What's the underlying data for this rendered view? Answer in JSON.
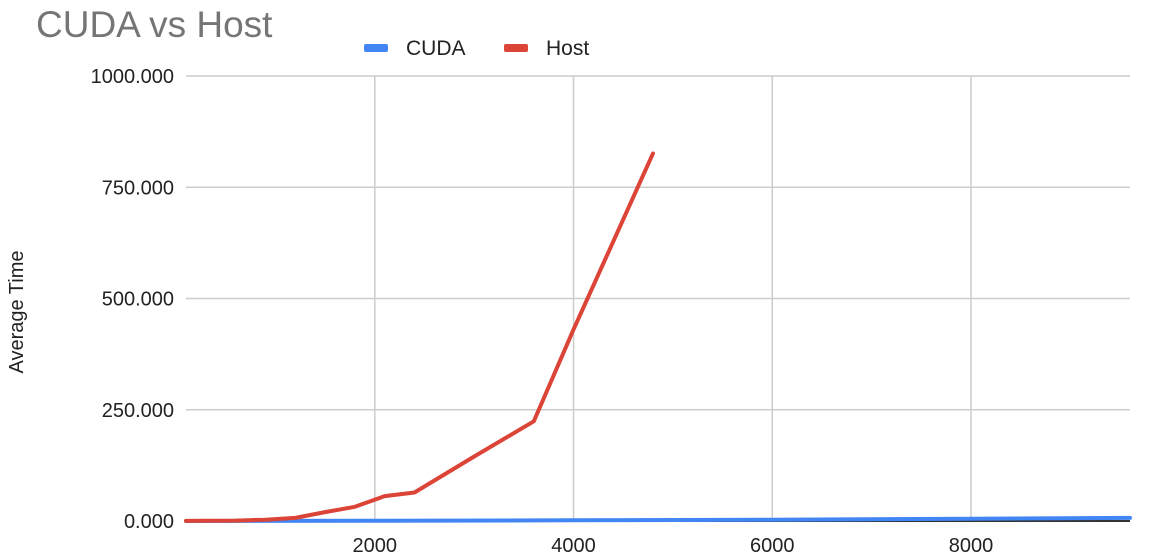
{
  "chart_data": {
    "type": "line",
    "title": "CUDA vs Host",
    "xlabel": "",
    "ylabel": "Average Time",
    "xlim": [
      100,
      9600
    ],
    "ylim": [
      0,
      1000
    ],
    "x_ticks": [
      2000,
      4000,
      6000,
      8000
    ],
    "x_tick_labels": [
      "2000",
      "4000",
      "6000",
      "8000"
    ],
    "y_ticks": [
      0,
      250,
      500,
      750,
      1000
    ],
    "y_tick_labels": [
      "0.000",
      "250.000",
      "500.000",
      "750.000",
      "1000.000"
    ],
    "grid": true,
    "legend_position": "top",
    "series": [
      {
        "name": "CUDA",
        "color": "#4285f4",
        "x": [
          100,
          2000,
          4000,
          6000,
          8000,
          9600
        ],
        "y": [
          0.1,
          0.5,
          1.5,
          3.0,
          5.0,
          7.0
        ]
      },
      {
        "name": "Host",
        "color": "#db4437",
        "x": [
          100,
          300,
          600,
          900,
          1200,
          1500,
          1800,
          2100,
          2400,
          3000,
          3600,
          4000,
          4800
        ],
        "y": [
          0.2,
          0.4,
          1.0,
          3.0,
          7.0,
          20.0,
          32.0,
          56.0,
          64.0,
          145.0,
          224.0,
          430.0,
          826.0
        ]
      }
    ]
  }
}
